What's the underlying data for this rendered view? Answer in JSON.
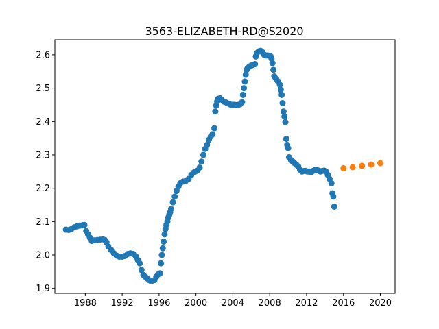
{
  "chart_data": {
    "type": "scatter",
    "title": "3563-ELIZABETH-RD@S2020",
    "xlabel": "",
    "ylabel": "",
    "xlim": [
      1984.7,
      2021.6
    ],
    "ylim": [
      1.885,
      2.645
    ],
    "x_ticks": [
      "1988",
      "1992",
      "1996",
      "2000",
      "2004",
      "2008",
      "2012",
      "2016",
      "2020"
    ],
    "y_ticks": [
      "1.9",
      "2.0",
      "2.1",
      "2.2",
      "2.3",
      "2.4",
      "2.5",
      "2.6"
    ],
    "grid": false,
    "legend": "none",
    "series": [
      {
        "color": "#1f77b4",
        "points": [
          [
            1985.9,
            2.076
          ],
          [
            1986.2,
            2.075
          ],
          [
            1986.5,
            2.078
          ],
          [
            1986.8,
            2.083
          ],
          [
            1987.1,
            2.086
          ],
          [
            1987.4,
            2.088
          ],
          [
            1987.7,
            2.089
          ],
          [
            1987.9,
            2.09
          ],
          [
            1988.1,
            2.072
          ],
          [
            1988.3,
            2.062
          ],
          [
            1988.5,
            2.052
          ],
          [
            1988.7,
            2.042
          ],
          [
            1989.0,
            2.044
          ],
          [
            1989.3,
            2.045
          ],
          [
            1989.6,
            2.046
          ],
          [
            1989.9,
            2.047
          ],
          [
            1990.1,
            2.045
          ],
          [
            1990.3,
            2.038
          ],
          [
            1990.5,
            2.025
          ],
          [
            1990.8,
            2.015
          ],
          [
            1991.1,
            2.005
          ],
          [
            1991.4,
            1.998
          ],
          [
            1991.7,
            1.995
          ],
          [
            1992.0,
            1.995
          ],
          [
            1992.3,
            1.997
          ],
          [
            1992.6,
            2.003
          ],
          [
            1992.9,
            2.005
          ],
          [
            1993.2,
            2.003
          ],
          [
            1993.5,
            1.995
          ],
          [
            1993.7,
            1.985
          ],
          [
            1993.9,
            1.975
          ],
          [
            1994.1,
            1.955
          ],
          [
            1994.3,
            1.94
          ],
          [
            1994.5,
            1.935
          ],
          [
            1994.7,
            1.93
          ],
          [
            1994.9,
            1.925
          ],
          [
            1995.1,
            1.922
          ],
          [
            1995.3,
            1.923
          ],
          [
            1995.5,
            1.925
          ],
          [
            1995.7,
            1.935
          ],
          [
            1995.9,
            1.942
          ],
          [
            1996.1,
            1.945
          ],
          [
            1996.2,
            1.975
          ],
          [
            1996.3,
            2.0
          ],
          [
            1996.4,
            2.02
          ],
          [
            1996.5,
            2.04
          ],
          [
            1996.6,
            2.062
          ],
          [
            1996.7,
            2.078
          ],
          [
            1996.8,
            2.09
          ],
          [
            1996.9,
            2.1
          ],
          [
            1997.0,
            2.112
          ],
          [
            1997.1,
            2.12
          ],
          [
            1997.2,
            2.128
          ],
          [
            1997.3,
            2.138
          ],
          [
            1997.5,
            2.158
          ],
          [
            1997.7,
            2.175
          ],
          [
            1997.9,
            2.192
          ],
          [
            1998.1,
            2.205
          ],
          [
            1998.3,
            2.215
          ],
          [
            1998.6,
            2.22
          ],
          [
            1998.9,
            2.222
          ],
          [
            1999.2,
            2.228
          ],
          [
            1999.5,
            2.24
          ],
          [
            1999.8,
            2.248
          ],
          [
            2000.1,
            2.252
          ],
          [
            2000.4,
            2.262
          ],
          [
            2000.6,
            2.28
          ],
          [
            2000.8,
            2.3
          ],
          [
            2001.0,
            2.318
          ],
          [
            2001.2,
            2.33
          ],
          [
            2001.4,
            2.345
          ],
          [
            2001.6,
            2.355
          ],
          [
            2001.8,
            2.362
          ],
          [
            2002.0,
            2.38
          ],
          [
            2002.1,
            2.43
          ],
          [
            2002.2,
            2.448
          ],
          [
            2002.3,
            2.46
          ],
          [
            2002.4,
            2.468
          ],
          [
            2002.6,
            2.47
          ],
          [
            2002.8,
            2.465
          ],
          [
            2003.0,
            2.46
          ],
          [
            2003.2,
            2.458
          ],
          [
            2003.4,
            2.455
          ],
          [
            2003.6,
            2.453
          ],
          [
            2003.8,
            2.45
          ],
          [
            2004.0,
            2.45
          ],
          [
            2004.2,
            2.45
          ],
          [
            2004.4,
            2.449
          ],
          [
            2004.6,
            2.45
          ],
          [
            2004.8,
            2.452
          ],
          [
            2005.0,
            2.458
          ],
          [
            2005.1,
            2.48
          ],
          [
            2005.2,
            2.5
          ],
          [
            2005.3,
            2.52
          ],
          [
            2005.4,
            2.54
          ],
          [
            2005.5,
            2.555
          ],
          [
            2005.6,
            2.56
          ],
          [
            2005.8,
            2.565
          ],
          [
            2006.0,
            2.568
          ],
          [
            2006.2,
            2.57
          ],
          [
            2006.4,
            2.572
          ],
          [
            2006.5,
            2.595
          ],
          [
            2006.6,
            2.605
          ],
          [
            2006.8,
            2.61
          ],
          [
            2007.0,
            2.612
          ],
          [
            2007.2,
            2.608
          ],
          [
            2007.4,
            2.6
          ],
          [
            2007.6,
            2.598
          ],
          [
            2007.8,
            2.598
          ],
          [
            2008.0,
            2.597
          ],
          [
            2008.1,
            2.595
          ],
          [
            2008.2,
            2.588
          ],
          [
            2008.3,
            2.575
          ],
          [
            2008.4,
            2.555
          ],
          [
            2008.5,
            2.535
          ],
          [
            2008.7,
            2.528
          ],
          [
            2008.9,
            2.52
          ],
          [
            2009.1,
            2.51
          ],
          [
            2009.2,
            2.495
          ],
          [
            2009.3,
            2.48
          ],
          [
            2009.4,
            2.455
          ],
          [
            2009.5,
            2.43
          ],
          [
            2009.6,
            2.415
          ],
          [
            2009.7,
            2.398
          ],
          [
            2009.8,
            2.348
          ],
          [
            2009.9,
            2.33
          ],
          [
            2010.0,
            2.32
          ],
          [
            2010.1,
            2.293
          ],
          [
            2010.3,
            2.285
          ],
          [
            2010.5,
            2.28
          ],
          [
            2010.7,
            2.275
          ],
          [
            2010.9,
            2.27
          ],
          [
            2011.1,
            2.265
          ],
          [
            2011.3,
            2.255
          ],
          [
            2011.5,
            2.25
          ],
          [
            2011.7,
            2.252
          ],
          [
            2011.9,
            2.252
          ],
          [
            2012.1,
            2.25
          ],
          [
            2012.3,
            2.25
          ],
          [
            2012.5,
            2.248
          ],
          [
            2012.7,
            2.252
          ],
          [
            2012.9,
            2.255
          ],
          [
            2013.1,
            2.255
          ],
          [
            2013.3,
            2.253
          ],
          [
            2013.5,
            2.25
          ],
          [
            2013.7,
            2.252
          ],
          [
            2013.9,
            2.253
          ],
          [
            2014.1,
            2.25
          ],
          [
            2014.3,
            2.24
          ],
          [
            2014.5,
            2.228
          ],
          [
            2014.7,
            2.215
          ],
          [
            2014.8,
            2.185
          ],
          [
            2014.9,
            2.175
          ],
          [
            2015.0,
            2.145
          ]
        ]
      },
      {
        "color": "#ff7f0e",
        "points": [
          [
            2016.0,
            2.26
          ],
          [
            2017.0,
            2.263
          ],
          [
            2018.0,
            2.267
          ],
          [
            2019.0,
            2.271
          ],
          [
            2020.0,
            2.275
          ]
        ]
      }
    ]
  }
}
